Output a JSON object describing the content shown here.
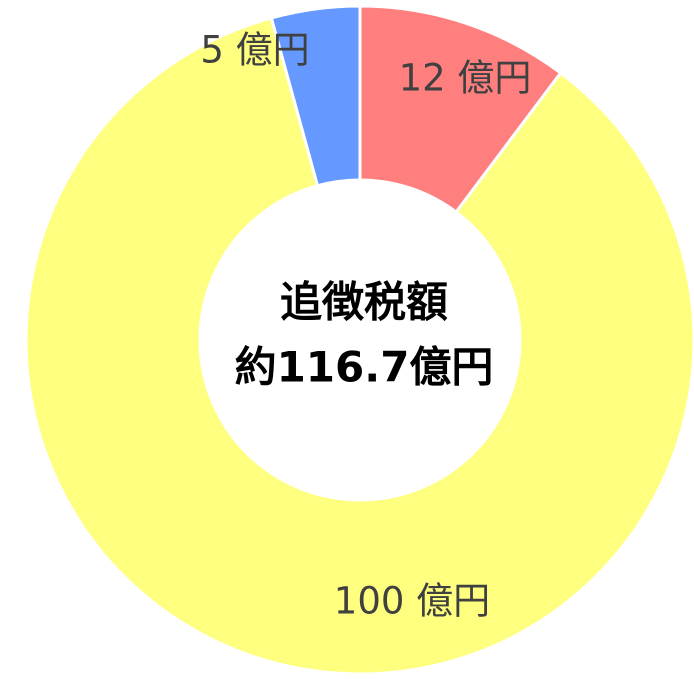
{
  "chart_data": {
    "type": "donut",
    "categories": [
      null,
      null,
      null
    ],
    "values": [
      12,
      100,
      5
    ],
    "value_labels": [
      "12 億円",
      "100 億円",
      "5 億円"
    ],
    "colors": [
      "#ff7f7f",
      "#ffff7f",
      "#6699ff"
    ],
    "annotations": [
      "追徴税額",
      "約116.7億円"
    ]
  }
}
